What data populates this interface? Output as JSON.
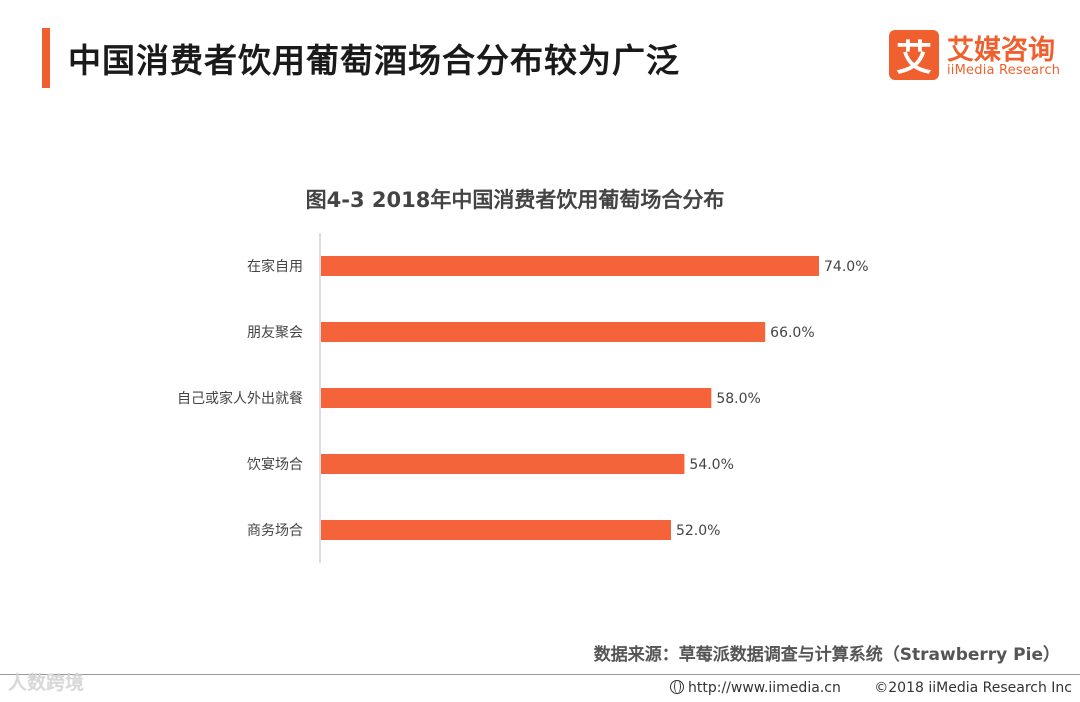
{
  "header": {
    "title": "中国消费者饮用葡萄酒场合分布较为广泛"
  },
  "logo": {
    "mark": "艾",
    "name_cn": "艾媒咨询",
    "name_en": "iiMedia Research"
  },
  "chart_data": {
    "type": "bar",
    "orientation": "horizontal",
    "title": "图4-3 2018年中国消费者饮用葡萄场合分布",
    "categories": [
      "在家自用",
      "朋友聚会",
      "自己或家人外出就餐",
      "饮宴场合",
      "商务场合"
    ],
    "values": [
      74.0,
      66.0,
      58.0,
      54.0,
      52.0
    ],
    "value_labels": [
      "74.0%",
      "66.0%",
      "58.0%",
      "54.0%",
      "52.0%"
    ],
    "xlim": [
      0,
      100
    ],
    "grid": false,
    "color": "#f4633a"
  },
  "footer": {
    "source": "数据来源：草莓派数据调查与计算系统（Strawberry Pie）",
    "watermark": "人数跨境",
    "url": "http://www.iimedia.cn",
    "copyright": "©2018  iiMedia Research  Inc"
  }
}
